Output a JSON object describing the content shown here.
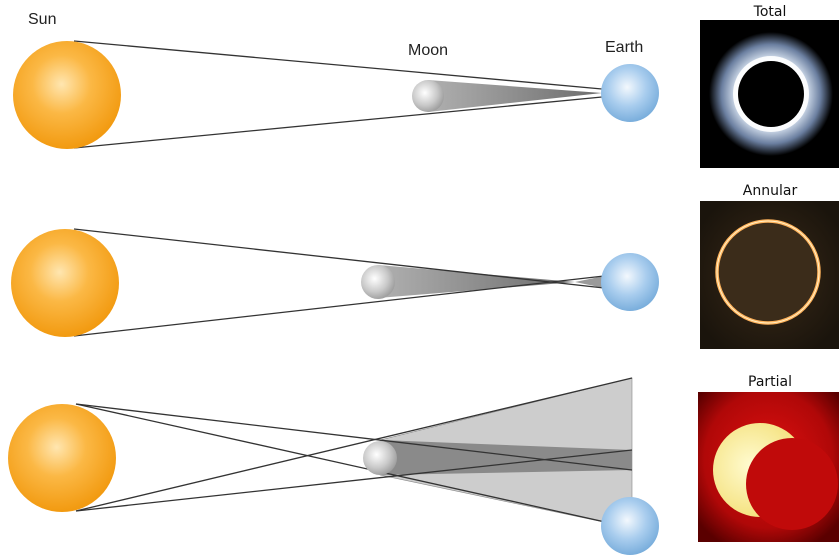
{
  "labels": {
    "sun": "Sun",
    "moon": "Moon",
    "earth": "Earth"
  },
  "photos": [
    {
      "label": "Total"
    },
    {
      "label": "Annular"
    },
    {
      "label": "Partial"
    }
  ],
  "colors": {
    "sun": "#f7a21b",
    "earth": "#8fbde6",
    "moon": "#b5b5b5",
    "umbra": "#7a7a7a",
    "penumbra": "#c8c8c8",
    "ray": "#333333"
  }
}
